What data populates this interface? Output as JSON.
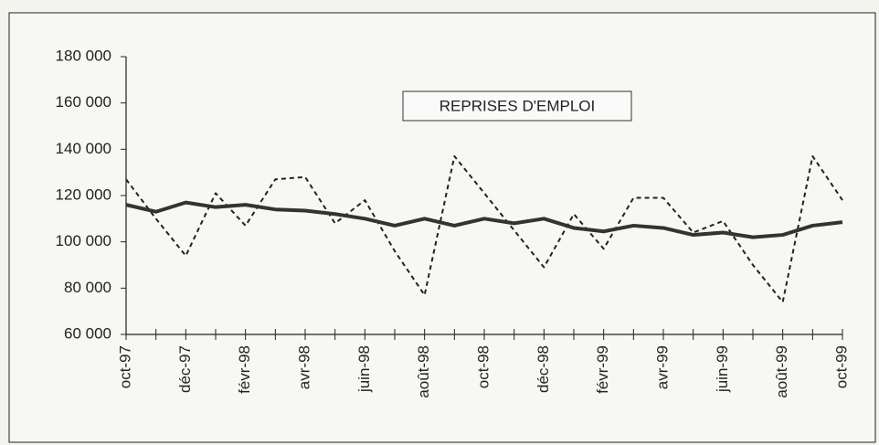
{
  "chart_data": {
    "type": "line",
    "annotation": "REPRISES D'EMPLOI",
    "categories": [
      "oct-97",
      null,
      "déc-97",
      null,
      "févr-98",
      null,
      "avr-98",
      null,
      "juin-98",
      null,
      "août-98",
      null,
      "oct-98",
      null,
      "déc-98",
      null,
      "févr-99",
      null,
      "avr-99",
      null,
      "juin-99",
      null,
      "août-99",
      null,
      "oct-99"
    ],
    "series": [
      {
        "color": "#222222",
        "dashed": true,
        "width": 2,
        "values": [
          127000,
          110000,
          94000,
          121000,
          107000,
          127000,
          128000,
          108000,
          118000,
          96000,
          77000,
          137000,
          121000,
          105000,
          89000,
          112000,
          97000,
          119000,
          119000,
          104000,
          109000,
          90000,
          74000,
          137000,
          118000
        ]
      },
      {
        "color": "#333333",
        "dashed": false,
        "width": 4,
        "values": [
          116000,
          113000,
          117000,
          115000,
          116000,
          114000,
          113500,
          112000,
          110000,
          107000,
          110000,
          107000,
          110000,
          108000,
          110000,
          106000,
          104500,
          107000,
          106000,
          103000,
          104000,
          102000,
          103000,
          107000,
          108500
        ]
      }
    ],
    "ylim": [
      60000,
      180000
    ],
    "yticks": [
      {
        "value": 60000,
        "label": "60 000"
      },
      {
        "value": 80000,
        "label": "80 000"
      },
      {
        "value": 100000,
        "label": "100 000"
      },
      {
        "value": 120000,
        "label": "120 000"
      },
      {
        "value": 140000,
        "label": "140 000"
      },
      {
        "value": 160000,
        "label": "160 000"
      },
      {
        "value": 180000,
        "label": "180 000"
      }
    ],
    "grid": false
  }
}
